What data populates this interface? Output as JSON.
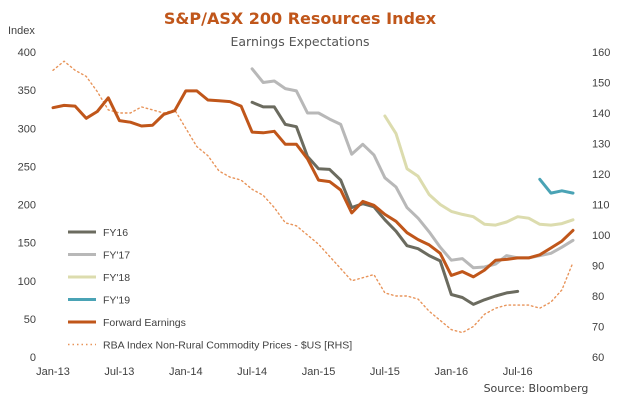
{
  "chart_data": {
    "type": "line",
    "title": "S&P/ASX 200 Resources Index",
    "subtitle": "Earnings Expectations",
    "ylabel": "Index",
    "source": "Source: Bloomberg",
    "x_ticks": [
      "Jan-13",
      "Jul-13",
      "Jan-14",
      "Jul-14",
      "Jan-15",
      "Jul-15",
      "Jan-16",
      "Jul-16"
    ],
    "x_range": [
      0,
      47
    ],
    "y_left": {
      "min": 0,
      "max": 400,
      "ticks": [
        0,
        50,
        100,
        150,
        200,
        250,
        300,
        350,
        400
      ]
    },
    "y_right": {
      "min": 60,
      "max": 160,
      "ticks": [
        60,
        70,
        80,
        90,
        100,
        110,
        120,
        130,
        140,
        150,
        160
      ]
    },
    "colors": {
      "title": "#c0561a",
      "subtitle": "#555555",
      "fy16": "#6b6b5f",
      "fy17": "#b8b8b8",
      "fy18": "#dcdcae",
      "fy19": "#4aa3b5",
      "forward": "#c0561a",
      "rba": "#e8945a"
    },
    "series": [
      {
        "key": "fy16",
        "name": "FY16",
        "axis": "left",
        "style": "solid",
        "x": [
          18,
          19,
          20,
          21,
          22,
          23,
          24,
          25,
          26,
          27,
          28,
          29,
          30,
          31,
          32,
          33,
          34,
          35,
          36,
          37,
          38,
          39,
          40,
          41,
          42
        ],
        "values": [
          334,
          328,
          328,
          305,
          302,
          263,
          247,
          246,
          232,
          196,
          201,
          197,
          180,
          165,
          146,
          142,
          133,
          126,
          82,
          78,
          69,
          75,
          80,
          84,
          86
        ]
      },
      {
        "key": "fy17",
        "name": "FY'17",
        "axis": "left",
        "style": "solid",
        "x": [
          18,
          19,
          20,
          21,
          22,
          23,
          24,
          25,
          26,
          27,
          28,
          29,
          30,
          31,
          32,
          33,
          34,
          35,
          36,
          37,
          38,
          39,
          40,
          41,
          42,
          43,
          44,
          45,
          46,
          47
        ],
        "values": [
          378,
          360,
          362,
          352,
          349,
          320,
          320,
          312,
          305,
          266,
          279,
          265,
          235,
          223,
          196,
          182,
          164,
          144,
          127,
          129,
          117,
          118,
          122,
          133,
          130,
          130,
          133,
          136,
          144,
          153
        ]
      },
      {
        "key": "fy18",
        "name": "FY'18",
        "axis": "left",
        "style": "solid",
        "x": [
          30,
          31,
          32,
          33,
          34,
          35,
          36,
          37,
          38,
          39,
          40,
          41,
          42,
          43,
          44,
          45,
          46,
          47
        ],
        "values": [
          316,
          293,
          247,
          237,
          213,
          200,
          191,
          187,
          184,
          174,
          173,
          177,
          184,
          182,
          174,
          173,
          175,
          180
        ]
      },
      {
        "key": "fy19",
        "name": "FY'19",
        "axis": "left",
        "style": "solid",
        "x": [
          44,
          45,
          46,
          47
        ],
        "values": [
          233,
          215,
          218,
          215
        ]
      },
      {
        "key": "forward",
        "name": "Forward Earnings",
        "axis": "left",
        "style": "solid",
        "x": [
          0,
          1,
          2,
          3,
          4,
          5,
          6,
          7,
          8,
          9,
          10,
          11,
          12,
          13,
          14,
          15,
          16,
          17,
          18,
          19,
          20,
          21,
          22,
          23,
          24,
          25,
          26,
          27,
          28,
          29,
          30,
          31,
          32,
          33,
          34,
          35,
          36,
          37,
          38,
          39,
          40,
          41,
          42,
          43,
          44,
          45,
          46,
          47
        ],
        "values": [
          327,
          330,
          329,
          313,
          322,
          340,
          310,
          308,
          303,
          304,
          318,
          323,
          349,
          349,
          337,
          336,
          335,
          329,
          295,
          294,
          296,
          279,
          279,
          260,
          232,
          230,
          219,
          189,
          204,
          199,
          187,
          178,
          163,
          154,
          147,
          136,
          107,
          112,
          105,
          114,
          127,
          128,
          130,
          130,
          134,
          143,
          152,
          166
        ]
      },
      {
        "key": "rba",
        "name": "RBA Index Non-Rural Commodity Prices - $US [RHS]",
        "axis": "right",
        "style": "dotted",
        "x": [
          0,
          1,
          2,
          3,
          4,
          5,
          6,
          7,
          8,
          9,
          10,
          11,
          12,
          13,
          14,
          15,
          16,
          17,
          18,
          19,
          20,
          21,
          22,
          23,
          24,
          25,
          26,
          27,
          28,
          29,
          30,
          31,
          32,
          33,
          34,
          35,
          36,
          37,
          38,
          39,
          40,
          41,
          42,
          43,
          44,
          45,
          46,
          47
        ],
        "values": [
          154,
          157,
          154,
          152,
          147,
          141,
          140,
          140,
          142,
          141,
          140,
          141,
          135,
          129,
          126,
          121,
          119,
          118,
          115,
          113,
          109,
          104,
          103,
          100,
          97,
          93,
          89,
          85,
          86,
          87,
          81,
          80,
          80,
          79,
          75,
          72,
          69,
          68,
          70,
          74,
          76,
          77,
          77,
          77,
          76,
          78,
          82,
          91
        ]
      }
    ],
    "legend_order": [
      "fy16",
      "fy17",
      "fy18",
      "fy19",
      "forward",
      "rba"
    ]
  }
}
